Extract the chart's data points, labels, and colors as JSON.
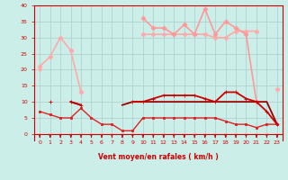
{
  "xlabel": "Vent moyen/en rafales ( km/h )",
  "xlim": [
    -0.5,
    23.5
  ],
  "ylim": [
    -2,
    40
  ],
  "yticks": [
    0,
    5,
    10,
    15,
    20,
    25,
    30,
    35,
    40
  ],
  "xticks": [
    0,
    1,
    2,
    3,
    4,
    5,
    6,
    7,
    8,
    9,
    10,
    11,
    12,
    13,
    14,
    15,
    16,
    17,
    18,
    19,
    20,
    21,
    22,
    23
  ],
  "bg_color": "#cceee8",
  "grid_color": "#aacccc",
  "series": [
    {
      "x": [
        0,
        1,
        2,
        3,
        4,
        5,
        6,
        7,
        8,
        9,
        10,
        11,
        12,
        13,
        14,
        15,
        16,
        17,
        18,
        19,
        20,
        21,
        22,
        23
      ],
      "y": [
        21,
        24,
        30,
        26,
        13,
        null,
        null,
        null,
        null,
        null,
        31,
        31,
        31,
        31,
        31,
        31,
        31,
        30,
        30,
        32,
        32,
        32,
        null,
        14
      ],
      "color": "#ffaaaa",
      "lw": 1.2,
      "marker": "D",
      "ms": 2.5
    },
    {
      "x": [
        0,
        1,
        2,
        3,
        4,
        5,
        6,
        7,
        8,
        9,
        10,
        11,
        12,
        13,
        14,
        15,
        16,
        17,
        18,
        19,
        20,
        21,
        22,
        23
      ],
      "y": [
        null,
        null,
        null,
        null,
        null,
        null,
        null,
        null,
        null,
        null,
        36,
        33,
        33,
        31,
        34,
        31,
        39,
        31,
        35,
        33,
        31,
        10,
        null,
        null
      ],
      "color": "#ff9999",
      "lw": 1.2,
      "marker": "D",
      "ms": 2.5
    },
    {
      "x": [
        0,
        1,
        2,
        3,
        4,
        5,
        6,
        7,
        8,
        9,
        10,
        11,
        12,
        13,
        14,
        15,
        16,
        17,
        18,
        19,
        20,
        21,
        22,
        23
      ],
      "y": [
        20,
        null,
        null,
        26,
        null,
        null,
        null,
        null,
        null,
        null,
        null,
        null,
        null,
        null,
        null,
        null,
        null,
        null,
        null,
        null,
        null,
        null,
        null,
        null
      ],
      "color": "#ffaaaa",
      "lw": 1.0,
      "marker": "D",
      "ms": 2
    },
    {
      "x": [
        0,
        1,
        2,
        3,
        4,
        5,
        6,
        7,
        8,
        9,
        10,
        11,
        12,
        13,
        14,
        15,
        16,
        17,
        18,
        19,
        20,
        21,
        22,
        23
      ],
      "y": [
        7,
        6,
        5,
        5,
        8,
        5,
        3,
        3,
        1,
        1,
        5,
        5,
        5,
        5,
        5,
        5,
        5,
        5,
        4,
        3,
        3,
        2,
        3,
        3
      ],
      "color": "#dd2222",
      "lw": 1.0,
      "marker": "s",
      "ms": 2
    },
    {
      "x": [
        0,
        1,
        2,
        3,
        4,
        5,
        6,
        7,
        8,
        9,
        10,
        11,
        12,
        13,
        14,
        15,
        16,
        17,
        18,
        19,
        20,
        21,
        22,
        23
      ],
      "y": [
        null,
        10,
        null,
        10,
        9,
        null,
        null,
        null,
        9,
        10,
        10,
        10,
        10,
        10,
        10,
        10,
        10,
        10,
        10,
        10,
        10,
        10,
        10,
        3
      ],
      "color": "#990000",
      "lw": 1.3,
      "marker": null,
      "ms": 0
    },
    {
      "x": [
        0,
        1,
        2,
        3,
        4,
        5,
        6,
        7,
        8,
        9,
        10,
        11,
        12,
        13,
        14,
        15,
        16,
        17,
        18,
        19,
        20,
        21,
        22,
        23
      ],
      "y": [
        null,
        10,
        null,
        10,
        9,
        null,
        null,
        null,
        null,
        10,
        10,
        11,
        12,
        12,
        12,
        12,
        11,
        10,
        13,
        13,
        11,
        10,
        7,
        3
      ],
      "color": "#cc0000",
      "lw": 1.3,
      "marker": "+",
      "ms": 3
    }
  ],
  "arrow_color": "#cc0000",
  "label_color": "#cc0000"
}
